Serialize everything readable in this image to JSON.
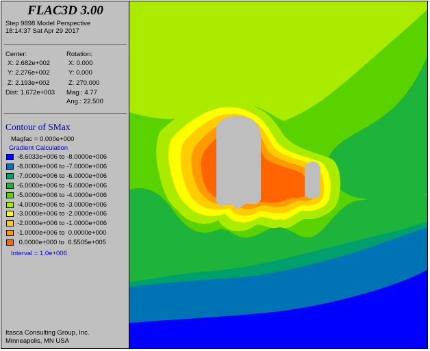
{
  "window": {
    "title": "FLAC3D 3.00"
  },
  "info": {
    "step_line": "Step 9898  Model Perspective",
    "time_line": "18:14:37 Sat Apr 29 2017",
    "center_label": "Center:",
    "center_x": "X: 2.682e+002",
    "center_y": "Y: 2.276e+002",
    "center_z": "Z: 2.193e+002",
    "dist": "Dist: 1.672e+003",
    "rotation_label": "Rotation:",
    "rot_x": "X:   0.000",
    "rot_y": "Y:   0.000",
    "rot_z": "Z: 270.000",
    "mag": "Mag.:    4.77",
    "ang": "Ang.:  22.500"
  },
  "contour": {
    "title": "Contour of SMax",
    "magfac": "Magfac = 0.000e+000",
    "gradient": "Gradient Calculation",
    "legend": [
      {
        "label": "-8.6033e+006 to -8.0000e+006",
        "color": "#0000ff"
      },
      {
        "label": "-8.0000e+006 to -7.0000e+006",
        "color": "#0073b4"
      },
      {
        "label": "-7.0000e+006 to -6.0000e+006",
        "color": "#00a06e"
      },
      {
        "label": "-6.0000e+006 to -5.0000e+006",
        "color": "#1eb43c"
      },
      {
        "label": "-5.0000e+006 to -4.0000e+006",
        "color": "#5ad200"
      },
      {
        "label": "-4.0000e+006 to -3.0000e+006",
        "color": "#aaeb00"
      },
      {
        "label": "-3.0000e+006 to -2.0000e+006",
        "color": "#ffff00"
      },
      {
        "label": "-2.0000e+006 to -1.0000e+006",
        "color": "#ffcd00"
      },
      {
        "label": "-1.0000e+006 to  0.0000e+000",
        "color": "#ff9b00"
      },
      {
        "label": " 0.0000e+000 to  6.5505e+005",
        "color": "#ff6400"
      }
    ],
    "interval": "Interval =  1.0e+006"
  },
  "footer": {
    "company": "Itasca Consulting Group, Inc.",
    "location": "Minneapolis, MN  USA"
  },
  "plot_colors": {
    "excavation": "#bebebe"
  }
}
